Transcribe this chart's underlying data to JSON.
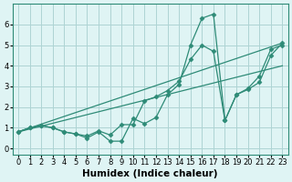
{
  "xlabel": "Humidex (Indice chaleur)",
  "x_values": [
    0,
    1,
    2,
    3,
    4,
    5,
    6,
    7,
    8,
    9,
    10,
    11,
    12,
    13,
    14,
    15,
    16,
    17,
    18,
    19,
    20,
    21,
    22,
    23
  ],
  "series_data": [
    [
      0.8,
      1.0,
      1.1,
      1.0,
      0.8,
      0.7,
      0.5,
      0.8,
      0.35,
      0.35,
      1.45,
      1.2,
      1.5,
      2.6,
      3.1,
      5.0,
      6.3,
      6.5,
      1.35,
      2.6,
      2.9,
      3.5,
      4.8,
      5.0
    ],
    [
      0.8,
      1.0,
      1.1,
      1.0,
      0.8,
      0.7,
      0.6,
      0.85,
      0.65,
      1.15,
      1.15,
      2.3,
      2.5,
      2.8,
      3.25,
      4.3,
      5.0,
      4.7,
      1.35,
      2.6,
      2.85,
      3.2,
      4.5,
      5.1
    ]
  ],
  "trend1": [
    0.8,
    5.1
  ],
  "trend1_x": [
    0,
    23
  ],
  "trend2": [
    0.8,
    4.0
  ],
  "trend2_x": [
    0,
    23
  ],
  "line_color": "#2e8b77",
  "marker": "D",
  "markersize": 2.5,
  "linewidth": 0.9,
  "bg_color": "#dff4f4",
  "grid_color": "#aed4d4",
  "ylim": [
    -0.3,
    7.0
  ],
  "xlim": [
    -0.5,
    23.5
  ],
  "yticks": [
    0,
    1,
    2,
    3,
    4,
    5,
    6
  ],
  "xticks": [
    0,
    1,
    2,
    3,
    4,
    5,
    6,
    7,
    8,
    9,
    10,
    11,
    12,
    13,
    14,
    15,
    16,
    17,
    18,
    19,
    20,
    21,
    22,
    23
  ],
  "tick_fontsize": 6,
  "label_fontsize": 7.5
}
